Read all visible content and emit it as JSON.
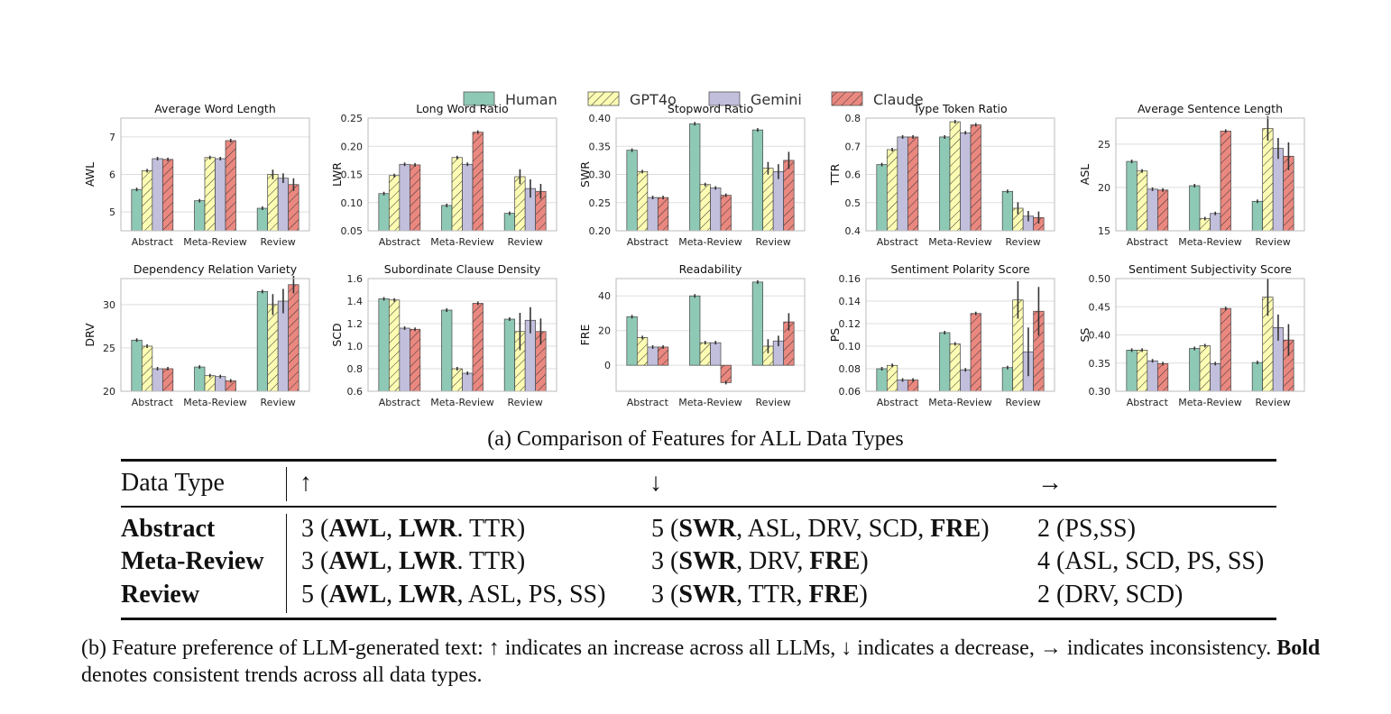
{
  "legend": {
    "entries": [
      "Human",
      "GPT4o",
      "Gemini",
      "Claude"
    ],
    "colors": [
      "#8ec9b6",
      "#fdfcb3",
      "#c1bfdc",
      "#ea8880"
    ]
  },
  "chart_data": [
    {
      "type": "bar",
      "title": "Average Word Length",
      "ylabel": "AWL",
      "categories": [
        "Abstract",
        "Meta-Review",
        "Review"
      ],
      "ylim": [
        4.5,
        7.5
      ],
      "yticks": [
        "5",
        "6",
        "7"
      ],
      "ytick_values": [
        5,
        6,
        7
      ],
      "series": [
        {
          "name": "Human",
          "values": [
            5.6,
            5.3,
            5.1
          ],
          "err": [
            0,
            0,
            0
          ]
        },
        {
          "name": "GPT4o",
          "values": [
            6.1,
            6.45,
            6.0
          ],
          "err": [
            0,
            0,
            0.08
          ]
        },
        {
          "name": "Gemini",
          "values": [
            6.42,
            6.42,
            5.9
          ],
          "err": [
            0,
            0,
            0.08
          ]
        },
        {
          "name": "Claude",
          "values": [
            6.4,
            6.9,
            5.73
          ],
          "err": [
            0,
            0,
            0.12
          ]
        }
      ]
    },
    {
      "type": "bar",
      "title": "Long Word Ratio",
      "ylabel": "LWR",
      "categories": [
        "Abstract",
        "Meta-Review",
        "Review"
      ],
      "ylim": [
        0.05,
        0.25
      ],
      "yticks": [
        "0.05",
        "0.10",
        "0.15",
        "0.20",
        "0.25"
      ],
      "ytick_values": [
        0.05,
        0.1,
        0.15,
        0.2,
        0.25
      ],
      "series": [
        {
          "name": "Human",
          "values": [
            0.116,
            0.095,
            0.081
          ],
          "err": [
            0,
            0,
            0
          ]
        },
        {
          "name": "GPT4o",
          "values": [
            0.148,
            0.18,
            0.146
          ],
          "err": [
            0,
            0,
            0.01
          ]
        },
        {
          "name": "Gemini",
          "values": [
            0.168,
            0.168,
            0.125
          ],
          "err": [
            0,
            0,
            0.013
          ]
        },
        {
          "name": "Claude",
          "values": [
            0.167,
            0.225,
            0.12
          ],
          "err": [
            0,
            0,
            0.01
          ]
        }
      ]
    },
    {
      "type": "bar",
      "title": "Stopword Ratio",
      "ylabel": "SWR",
      "categories": [
        "Abstract",
        "Meta-Review",
        "Review"
      ],
      "ylim": [
        0.2,
        0.4
      ],
      "yticks": [
        "0.20",
        "0.25",
        "0.30",
        "0.35",
        "0.40"
      ],
      "ytick_values": [
        0.2,
        0.25,
        0.3,
        0.35,
        0.4
      ],
      "series": [
        {
          "name": "Human",
          "values": [
            0.343,
            0.39,
            0.379
          ],
          "err": [
            0,
            0,
            0
          ]
        },
        {
          "name": "GPT4o",
          "values": [
            0.305,
            0.282,
            0.311
          ],
          "err": [
            0,
            0,
            0.008
          ]
        },
        {
          "name": "Gemini",
          "values": [
            0.259,
            0.276,
            0.305
          ],
          "err": [
            0,
            0,
            0.01
          ]
        },
        {
          "name": "Claude",
          "values": [
            0.259,
            0.263,
            0.325
          ],
          "err": [
            0,
            0,
            0.012
          ]
        }
      ]
    },
    {
      "type": "bar",
      "title": "Type Token Ratio",
      "ylabel": "TTR",
      "categories": [
        "Abstract",
        "Meta-Review",
        "Review"
      ],
      "ylim": [
        0.4,
        0.8
      ],
      "yticks": [
        "0.4",
        "0.5",
        "0.6",
        "0.7",
        "0.8"
      ],
      "ytick_values": [
        0.4,
        0.5,
        0.6,
        0.7,
        0.8
      ],
      "series": [
        {
          "name": "Human",
          "values": [
            0.635,
            0.733,
            0.54
          ],
          "err": [
            0,
            0,
            0
          ]
        },
        {
          "name": "GPT4o",
          "values": [
            0.688,
            0.787,
            0.48
          ],
          "err": [
            0,
            0,
            0.015
          ]
        },
        {
          "name": "Gemini",
          "values": [
            0.733,
            0.748,
            0.452
          ],
          "err": [
            0,
            0,
            0.012
          ]
        },
        {
          "name": "Claude",
          "values": [
            0.733,
            0.776,
            0.447
          ],
          "err": [
            0,
            0,
            0.015
          ]
        }
      ]
    },
    {
      "type": "bar",
      "title": "Average Sentence Length",
      "ylabel": "ASL",
      "categories": [
        "Abstract",
        "Meta-Review",
        "Review"
      ],
      "ylim": [
        15,
        28
      ],
      "yticks": [
        "15",
        "20",
        "25"
      ],
      "ytick_values": [
        15,
        20,
        25
      ],
      "series": [
        {
          "name": "Human",
          "values": [
            23.0,
            20.2,
            18.4
          ],
          "err": [
            0,
            0,
            0
          ]
        },
        {
          "name": "GPT4o",
          "values": [
            21.9,
            16.4,
            26.8
          ],
          "err": [
            0,
            0,
            1.2
          ]
        },
        {
          "name": "Gemini",
          "values": [
            19.8,
            17.0,
            24.5
          ],
          "err": [
            0,
            0,
            1.0
          ]
        },
        {
          "name": "Claude",
          "values": [
            19.7,
            26.5,
            23.6
          ],
          "err": [
            0,
            0,
            1.4
          ]
        }
      ]
    },
    {
      "type": "bar",
      "title": "Dependency Relation Variety",
      "ylabel": "DRV",
      "categories": [
        "Abstract",
        "Meta-Review",
        "Review"
      ],
      "ylim": [
        20,
        33
      ],
      "yticks": [
        "20",
        "25",
        "30"
      ],
      "ytick_values": [
        20,
        25,
        30
      ],
      "series": [
        {
          "name": "Human",
          "values": [
            25.9,
            22.8,
            31.5
          ],
          "err": [
            0,
            0,
            0
          ]
        },
        {
          "name": "GPT4o",
          "values": [
            25.2,
            21.8,
            30.0
          ],
          "err": [
            0,
            0,
            1.0
          ]
        },
        {
          "name": "Gemini",
          "values": [
            22.6,
            21.7,
            30.4
          ],
          "err": [
            0,
            0,
            1.2
          ]
        },
        {
          "name": "Claude",
          "values": [
            22.6,
            21.2,
            32.3
          ],
          "err": [
            0,
            0,
            0.8
          ]
        }
      ]
    },
    {
      "type": "bar",
      "title": "Subordinate Clause Density",
      "ylabel": "SCD",
      "categories": [
        "Abstract",
        "Meta-Review",
        "Review"
      ],
      "ylim": [
        0.6,
        1.6
      ],
      "yticks": [
        "0.6",
        "0.8",
        "1.0",
        "1.2",
        "1.4",
        "1.6"
      ],
      "ytick_values": [
        0.6,
        0.8,
        1.0,
        1.2,
        1.4,
        1.6
      ],
      "series": [
        {
          "name": "Human",
          "values": [
            1.42,
            1.32,
            1.24
          ],
          "err": [
            0,
            0,
            0
          ]
        },
        {
          "name": "GPT4o",
          "values": [
            1.41,
            0.8,
            1.13
          ],
          "err": [
            0,
            0,
            0.15
          ]
        },
        {
          "name": "Gemini",
          "values": [
            1.16,
            0.76,
            1.23
          ],
          "err": [
            0,
            0,
            0.1
          ]
        },
        {
          "name": "Claude",
          "values": [
            1.15,
            1.38,
            1.13
          ],
          "err": [
            0,
            0,
            0.1
          ]
        }
      ]
    },
    {
      "type": "bar",
      "title": "Readability",
      "ylabel": "FRE",
      "categories": [
        "Abstract",
        "Meta-Review",
        "Review"
      ],
      "ylim": [
        -15,
        50
      ],
      "yticks": [
        "0",
        "20",
        "40"
      ],
      "ytick_values": [
        0,
        20,
        40
      ],
      "series": [
        {
          "name": "Human",
          "values": [
            28,
            40,
            48
          ],
          "err": [
            0,
            0,
            0
          ]
        },
        {
          "name": "GPT4o",
          "values": [
            16,
            13,
            11
          ],
          "err": [
            0,
            0,
            3
          ]
        },
        {
          "name": "Gemini",
          "values": [
            10.5,
            13,
            14
          ],
          "err": [
            0,
            0,
            2
          ]
        },
        {
          "name": "Claude",
          "values": [
            10.5,
            -10,
            25
          ],
          "err": [
            0,
            0,
            4
          ]
        }
      ]
    },
    {
      "type": "bar",
      "title": "Sentiment Polarity Score",
      "ylabel": "PS",
      "categories": [
        "Abstract",
        "Meta-Review",
        "Review"
      ],
      "ylim": [
        0.06,
        0.16
      ],
      "yticks": [
        "0.06",
        "0.08",
        "0.10",
        "0.12",
        "0.14",
        "0.16"
      ],
      "ytick_values": [
        0.06,
        0.08,
        0.1,
        0.12,
        0.14,
        0.16
      ],
      "series": [
        {
          "name": "Human",
          "values": [
            0.08,
            0.112,
            0.081
          ],
          "err": [
            0,
            0,
            0
          ]
        },
        {
          "name": "GPT4o",
          "values": [
            0.083,
            0.102,
            0.141
          ],
          "err": [
            0,
            0,
            0.015
          ]
        },
        {
          "name": "Gemini",
          "values": [
            0.07,
            0.079,
            0.095
          ],
          "err": [
            0,
            0,
            0.02
          ]
        },
        {
          "name": "Claude",
          "values": [
            0.07,
            0.129,
            0.131
          ],
          "err": [
            0,
            0,
            0.02
          ]
        }
      ]
    },
    {
      "type": "bar",
      "title": "Sentiment Subjectivity Score",
      "ylabel": "SS",
      "categories": [
        "Abstract",
        "Meta-Review",
        "Review"
      ],
      "ylim": [
        0.3,
        0.5
      ],
      "yticks": [
        "0.30",
        "0.35",
        "0.40",
        "0.45",
        "0.50"
      ],
      "ytick_values": [
        0.3,
        0.35,
        0.4,
        0.45,
        0.5
      ],
      "series": [
        {
          "name": "Human",
          "values": [
            0.373,
            0.376,
            0.351
          ],
          "err": [
            0,
            0,
            0
          ]
        },
        {
          "name": "GPT4o",
          "values": [
            0.373,
            0.381,
            0.467
          ],
          "err": [
            0,
            0,
            0.03
          ]
        },
        {
          "name": "Gemini",
          "values": [
            0.354,
            0.349,
            0.413
          ],
          "err": [
            0,
            0,
            0.02
          ]
        },
        {
          "name": "Claude",
          "values": [
            0.349,
            0.447,
            0.391
          ],
          "err": [
            0,
            0,
            0.025
          ]
        }
      ]
    }
  ],
  "caption_a": "(a) Comparison of Features for ALL Data Types",
  "table": {
    "headers": [
      "Data Type",
      "↑",
      "↓",
      "→"
    ],
    "rows": [
      {
        "type": "Abstract",
        "up": [
          {
            "t": "3 (",
            "b": false
          },
          {
            "t": "AWL",
            "b": true
          },
          {
            "t": ", ",
            "b": false
          },
          {
            "t": "LWR",
            "b": true
          },
          {
            "t": ". TTR)",
            "b": false
          }
        ],
        "down": [
          {
            "t": "5 (",
            "b": false
          },
          {
            "t": "SWR",
            "b": true
          },
          {
            "t": ", ASL, DRV, SCD, ",
            "b": false
          },
          {
            "t": "FRE",
            "b": true
          },
          {
            "t": ")",
            "b": false
          }
        ],
        "flat": [
          {
            "t": "2 (PS,SS)",
            "b": false
          }
        ]
      },
      {
        "type": "Meta-Review",
        "up": [
          {
            "t": "3 (",
            "b": false
          },
          {
            "t": "AWL",
            "b": true
          },
          {
            "t": ", ",
            "b": false
          },
          {
            "t": "LWR",
            "b": true
          },
          {
            "t": ". TTR)",
            "b": false
          }
        ],
        "down": [
          {
            "t": "3 (",
            "b": false
          },
          {
            "t": "SWR",
            "b": true
          },
          {
            "t": ", DRV, ",
            "b": false
          },
          {
            "t": "FRE",
            "b": true
          },
          {
            "t": ")",
            "b": false
          }
        ],
        "flat": [
          {
            "t": "4 (ASL, SCD, PS, SS)",
            "b": false
          }
        ]
      },
      {
        "type": "Review",
        "up": [
          {
            "t": "5 (",
            "b": false
          },
          {
            "t": "AWL",
            "b": true
          },
          {
            "t": ", ",
            "b": false
          },
          {
            "t": "LWR",
            "b": true
          },
          {
            "t": ", ASL, PS, SS)",
            "b": false
          }
        ],
        "down": [
          {
            "t": "3 (",
            "b": false
          },
          {
            "t": "SWR",
            "b": true
          },
          {
            "t": ", TTR, ",
            "b": false
          },
          {
            "t": "FRE",
            "b": true
          },
          {
            "t": ")",
            "b": false
          }
        ],
        "flat": [
          {
            "t": "2 (DRV, SCD)",
            "b": false
          }
        ]
      }
    ]
  },
  "caption_b": [
    {
      "t": "(b) Feature preference of LLM-generated text: ↑ indicates an increase across all LLMs, ↓ indicates a decrease, → indicates inconsistency. ",
      "b": false
    },
    {
      "t": "Bold",
      "b": true
    },
    {
      "t": " denotes consistent trends across all data types.",
      "b": false
    }
  ]
}
